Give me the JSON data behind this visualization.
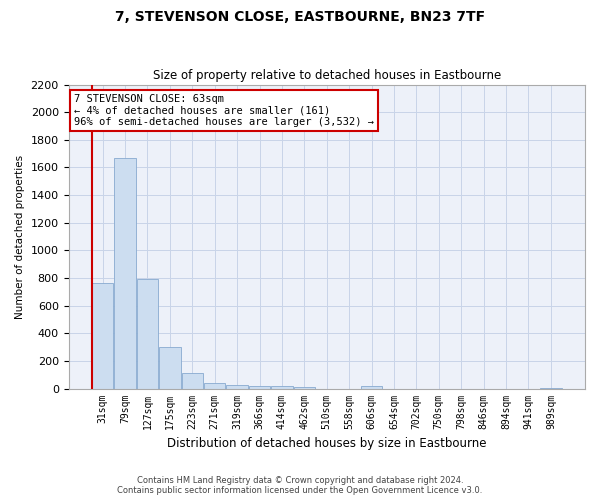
{
  "title": "7, STEVENSON CLOSE, EASTBOURNE, BN23 7TF",
  "subtitle": "Size of property relative to detached houses in Eastbourne",
  "xlabel": "Distribution of detached houses by size in Eastbourne",
  "ylabel": "Number of detached properties",
  "footer_line1": "Contains HM Land Registry data © Crown copyright and database right 2024.",
  "footer_line2": "Contains public sector information licensed under the Open Government Licence v3.0.",
  "categories": [
    "31sqm",
    "79sqm",
    "127sqm",
    "175sqm",
    "223sqm",
    "271sqm",
    "319sqm",
    "366sqm",
    "414sqm",
    "462sqm",
    "510sqm",
    "558sqm",
    "606sqm",
    "654sqm",
    "702sqm",
    "750sqm",
    "798sqm",
    "846sqm",
    "894sqm",
    "941sqm",
    "989sqm"
  ],
  "values": [
    767,
    1670,
    790,
    300,
    110,
    40,
    28,
    20,
    15,
    8,
    0,
    0,
    18,
    0,
    0,
    0,
    0,
    0,
    0,
    0,
    5
  ],
  "bar_color": "#ccddf0",
  "bar_edge_color": "#88aad0",
  "grid_color": "#c8d4e8",
  "background_color": "#edf1f9",
  "marker_color": "#cc0000",
  "annotation_line1": "7 STEVENSON CLOSE: 63sqm",
  "annotation_line2": "← 4% of detached houses are smaller (161)",
  "annotation_line3": "96% of semi-detached houses are larger (3,532) →",
  "annotation_box_color": "#ffffff",
  "annotation_border_color": "#cc0000",
  "ylim": [
    0,
    2200
  ],
  "yticks": [
    0,
    200,
    400,
    600,
    800,
    1000,
    1200,
    1400,
    1600,
    1800,
    2000,
    2200
  ]
}
